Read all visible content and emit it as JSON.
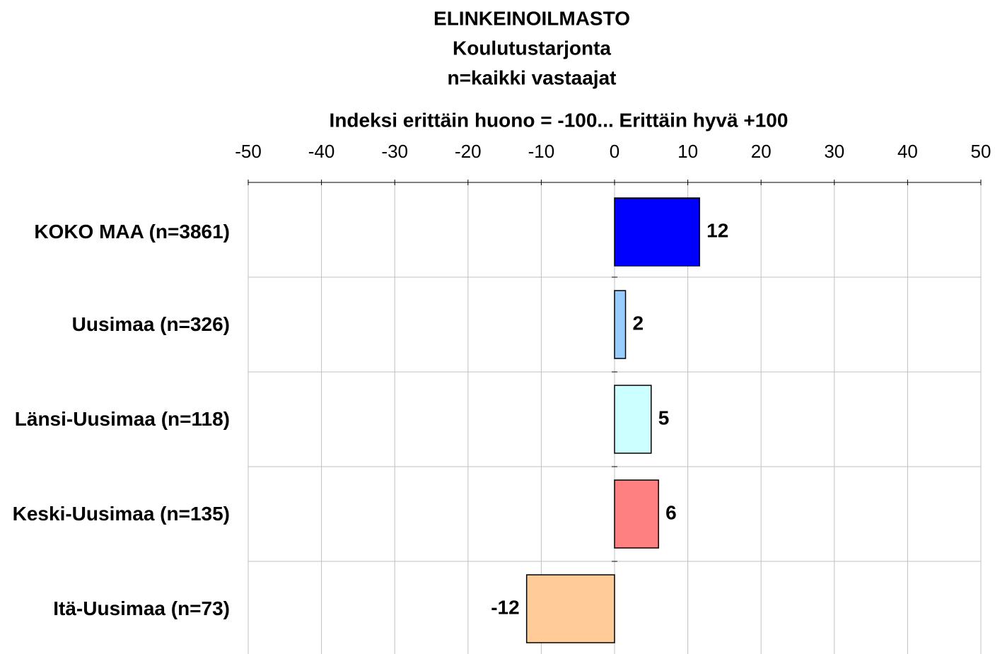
{
  "chart_data": {
    "type": "bar",
    "orientation": "horizontal",
    "title": "ELINKEINOILMASTO",
    "subtitle": "Koulutustarjonta",
    "note": "n=kaikki vastaajat",
    "x_label": "Indeksi erittäin huono = -100... Erittäin hyvä +100",
    "categories": [
      "KOKO MAA (n=3861)",
      "Uusimaa (n=326)",
      "Länsi-Uusimaa (n=118)",
      "Keski-Uusimaa (n=135)",
      "Itä-Uusimaa (n=73)"
    ],
    "values": [
      11.6,
      1.5,
      5,
      6,
      -12
    ],
    "value_labels": [
      "12",
      "2",
      "5",
      "6",
      "-12"
    ],
    "colors": [
      "#0000ff",
      "#99ccff",
      "#ccffff",
      "#ff8080",
      "#ffcc99"
    ],
    "xlim": [
      -50,
      50
    ],
    "xticks": [
      -50,
      -40,
      -30,
      -20,
      -10,
      0,
      10,
      20,
      30,
      40,
      50
    ],
    "grid": true
  }
}
